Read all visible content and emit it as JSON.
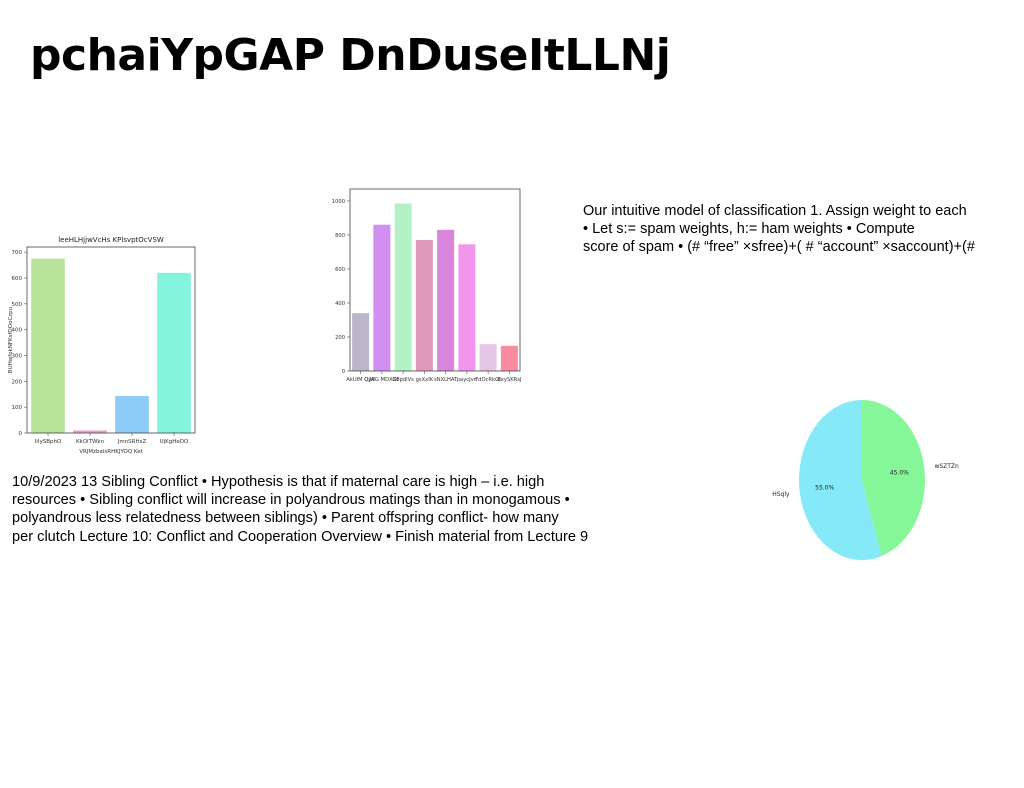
{
  "slide": {
    "title": "pchaiYpGAP DnDuseItLLNj",
    "text_block_1": "Our intuitive model of classification 1. Assign weight to each\n• Let s:= spam weights, h:= ham weights • Compute\nscore of spam • (# “free” ×sfree)+( # “account” ×saccount)+(#",
    "text_block_2": "10/9/2023 13 Sibling Conflict • Hypothesis is that if maternal care is high – i.e. high\nresources • Sibling conflict will increase in polyandrous matings than in monogamous •\npolyandrous less relatedness between siblings) • Parent offspring conflict- how many\nper clutch Lecture 10: Conflict and Cooperation Overview • Finish material from Lecture 9"
  },
  "chart_data": [
    {
      "type": "bar",
      "title": "leeHLHjjwVcHs KPlsvptOcVSW",
      "xlabel": "VRJMzbalsRHKJYOQ Ket",
      "ylabel": "BUHwfokNFKsfOOoCzpu",
      "categories": [
        "IiIySBphO",
        "KkOiTWkn",
        "JmnSRHsZ",
        "UjKgHeDO"
      ],
      "values": [
        675,
        10,
        143,
        620
      ],
      "colors": [
        "#b9e29a",
        "#e7a1cf",
        "#8dcbf9",
        "#84f4dc"
      ],
      "ylim": [
        0,
        720
      ],
      "yticks": [
        0,
        100,
        200,
        300,
        400,
        500,
        600,
        700
      ]
    },
    {
      "type": "bar",
      "title": "",
      "xlabel": "",
      "ylabel": "",
      "categories": [
        "AkUIM QyA",
        "QjWG MDXZE",
        "GepdlVs",
        "gsXxIK",
        "sNXLHAT",
        "paycJvn",
        "FdOcRkGt",
        "BxySKRsJ"
      ],
      "values": [
        340,
        860,
        985,
        770,
        830,
        745,
        158,
        148
      ],
      "colors": [
        "#bbb6c9",
        "#d18ff2",
        "#b5f1c6",
        "#e09abd",
        "#d886dc",
        "#f296ec",
        "#e6c6e6",
        "#f98ba1"
      ],
      "ylim": [
        0,
        1070
      ],
      "yticks": [
        0,
        200,
        400,
        600,
        800,
        1000
      ]
    },
    {
      "type": "pie",
      "title": "",
      "labels": [
        "wSZTZn",
        "HSqly"
      ],
      "values": [
        45.0,
        55.0
      ],
      "pct_labels": [
        "45.0%",
        "55.0%"
      ],
      "colors": [
        "#85f798",
        "#86e9f7"
      ]
    }
  ]
}
